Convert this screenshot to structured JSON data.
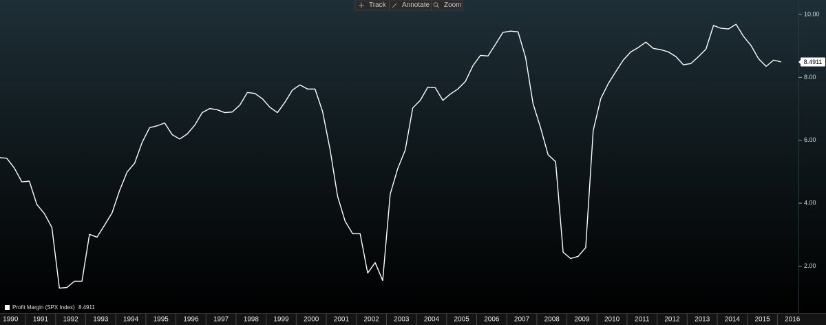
{
  "toolbar": [
    "Track",
    "Annotate",
    "Zoom"
  ],
  "chart_data": {
    "type": "line",
    "x": [
      1990.125,
      1990.375,
      1990.625,
      1990.875,
      1991.125,
      1991.375,
      1991.625,
      1991.875,
      1992.125,
      1992.375,
      1992.625,
      1992.875,
      1993.125,
      1993.375,
      1993.625,
      1993.875,
      1994.125,
      1994.375,
      1994.625,
      1994.875,
      1995.125,
      1995.375,
      1995.625,
      1995.875,
      1996.125,
      1996.375,
      1996.625,
      1996.875,
      1997.125,
      1997.375,
      1997.625,
      1997.875,
      1998.125,
      1998.375,
      1998.625,
      1998.875,
      1999.125,
      1999.375,
      1999.625,
      1999.875,
      2000.125,
      2000.375,
      2000.625,
      2000.875,
      2001.125,
      2001.375,
      2001.625,
      2001.875,
      2002.125,
      2002.375,
      2002.625,
      2002.875,
      2003.125,
      2003.375,
      2003.625,
      2003.875,
      2004.125,
      2004.375,
      2004.625,
      2004.875,
      2005.125,
      2005.375,
      2005.625,
      2005.875,
      2006.125,
      2006.375,
      2006.625,
      2006.875,
      2007.125,
      2007.375,
      2007.625,
      2007.875,
      2008.125,
      2008.375,
      2008.625,
      2008.875,
      2009.125,
      2009.375,
      2009.625,
      2009.875,
      2010.125,
      2010.375,
      2010.625,
      2010.875,
      2011.125,
      2011.375,
      2011.625,
      2011.875,
      2012.125,
      2012.375,
      2012.625,
      2012.875,
      2013.125,
      2013.375,
      2013.625,
      2013.875,
      2014.125,
      2014.375,
      2014.625,
      2014.875,
      2015.125,
      2015.375,
      2015.625,
      2015.875,
      2016.125
    ],
    "series": [
      {
        "name": "Profit Margin (SPX Index)",
        "color": "#ffffff",
        "values": [
          5.45,
          5.43,
          5.12,
          4.68,
          4.7,
          3.96,
          3.67,
          3.23,
          1.3,
          1.32,
          1.52,
          1.52,
          3.01,
          2.92,
          3.3,
          3.69,
          4.4,
          4.99,
          5.27,
          5.93,
          6.4,
          6.46,
          6.55,
          6.18,
          6.04,
          6.2,
          6.48,
          6.88,
          7.01,
          6.97,
          6.88,
          6.9,
          7.12,
          7.52,
          7.49,
          7.32,
          7.05,
          6.88,
          7.21,
          7.6,
          7.76,
          7.63,
          7.63,
          6.92,
          5.71,
          4.22,
          3.43,
          3.03,
          3.03,
          1.78,
          2.11,
          1.54,
          4.29,
          5.1,
          5.69,
          7.03,
          7.27,
          7.69,
          7.67,
          7.27,
          7.47,
          7.63,
          7.87,
          8.37,
          8.7,
          8.68,
          9.05,
          9.43,
          9.47,
          9.45,
          8.64,
          7.16,
          6.4,
          5.54,
          5.32,
          2.44,
          2.24,
          2.31,
          2.59,
          6.31,
          7.32,
          7.8,
          8.18,
          8.55,
          8.81,
          8.95,
          9.12,
          8.92,
          8.88,
          8.81,
          8.66,
          8.4,
          8.44,
          8.66,
          8.9,
          9.65,
          9.56,
          9.54,
          9.69,
          9.3,
          9.01,
          8.59,
          8.35,
          8.55,
          8.4911
        ]
      }
    ],
    "xlim": [
      1990.15,
      2016.7
    ],
    "xticks": [
      1990,
      1991,
      1992,
      1993,
      1994,
      1995,
      1996,
      1997,
      1998,
      1999,
      2000,
      2001,
      2002,
      2003,
      2004,
      2005,
      2006,
      2007,
      2008,
      2009,
      2010,
      2011,
      2012,
      2013,
      2014,
      2015,
      2016
    ],
    "ylim": [
      0.5,
      10.46
    ],
    "yticks": [
      {
        "value": 2,
        "label": "2.00"
      },
      {
        "value": 4,
        "label": "4.00"
      },
      {
        "value": 6,
        "label": "6.00"
      },
      {
        "value": 8,
        "label": "8.00"
      },
      {
        "value": 10,
        "label": "10.00"
      }
    ],
    "y_axis_side": "right",
    "grid": false,
    "legend": "bottom-left"
  }
}
